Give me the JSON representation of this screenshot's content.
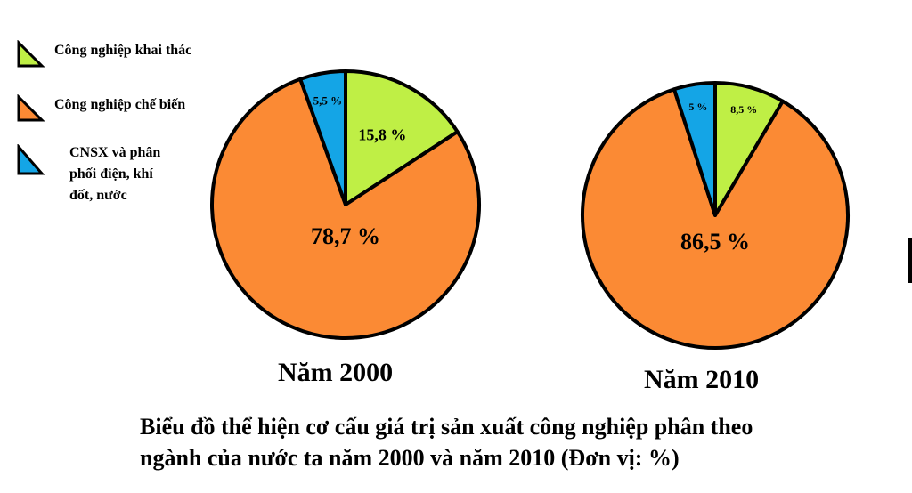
{
  "colors": {
    "khai_thac": "#bfef45",
    "che_bien": "#fb8a34",
    "cnsx": "#14a5e6",
    "outline": "#000000"
  },
  "legend": [
    {
      "label": "Công nghiệp khai thác",
      "color_key": "khai_thac"
    },
    {
      "label": "Công nghiệp chế biến",
      "color_key": "che_bien"
    },
    {
      "label_lines": [
        "CNSX và phân",
        "phối điện, khí",
        "đốt, nước"
      ],
      "color_key": "cnsx"
    }
  ],
  "chart_data": [
    {
      "type": "pie",
      "title": "Năm 2000",
      "unit": "%",
      "slices": [
        {
          "name": "Công nghiệp khai thác",
          "value": 15.8,
          "label": "15,8 %"
        },
        {
          "name": "Công nghiệp chế biến",
          "value": 78.7,
          "label": "78,7 %"
        },
        {
          "name": "CNSX và phân phối điện, khí đốt, nước",
          "value": 5.5,
          "label": "5,5 %"
        }
      ]
    },
    {
      "type": "pie",
      "title": "Năm 2010",
      "unit": "%",
      "slices": [
        {
          "name": "Công nghiệp khai thác",
          "value": 8.5,
          "label": "8,5 %"
        },
        {
          "name": "Công nghiệp chế biến",
          "value": 86.5,
          "label": "86,5 %"
        },
        {
          "name": "CNSX và phân phối điện, khí đốt, nước",
          "value": 5,
          "label": "5 %"
        }
      ]
    }
  ],
  "caption_lines": [
    "Biểu đồ thể hiện cơ cấu giá trị sản xuất công nghiệp phân theo",
    "ngành của nước ta năm 2000 và năm 2010 (Đơn vị: %)"
  ]
}
